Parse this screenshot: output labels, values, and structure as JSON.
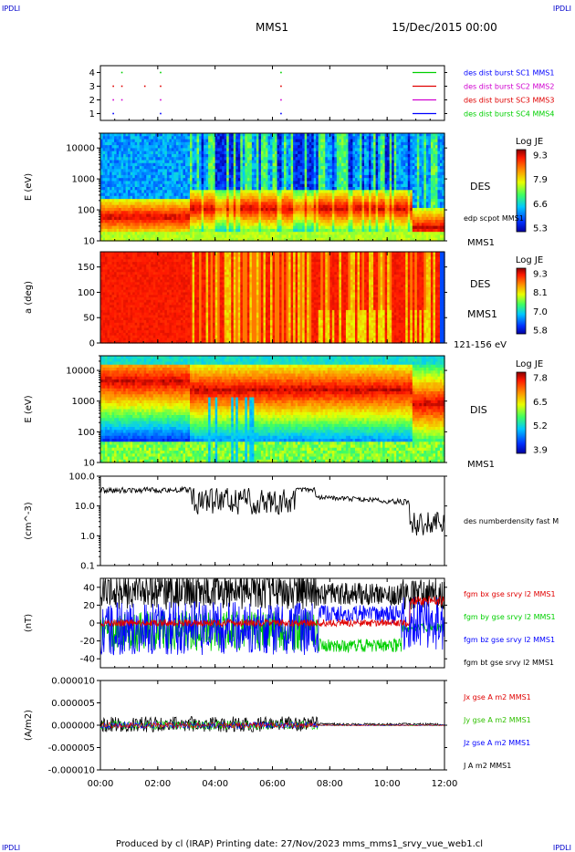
{
  "corner_labels": {
    "top_left": "IPDLI",
    "top_right": "IPDLI",
    "bottom_left": "IPDLI",
    "bottom_right": "IPDLI"
  },
  "header": {
    "mission": "MMS1",
    "datetime": "15/Dec/2015 00:00"
  },
  "footer": {
    "text": "Produced by cl (IRAP)   Printing date: 27/Nov/2023   mms_mms1_srvy_vue_web1.cl"
  },
  "colors": {
    "red": "#e00000",
    "green": "#00d000",
    "blue": "#0000ff",
    "black": "#000000",
    "magenta": "#d000d0"
  },
  "x_axis": {
    "ticks": [
      "00:00",
      "02:00",
      "04:00",
      "06:00",
      "08:00",
      "10:00",
      "12:00"
    ],
    "range_hours": [
      0,
      12
    ]
  },
  "chart_data": [
    {
      "id": "burst",
      "type": "scatter",
      "y_ticks": [
        "1",
        "2",
        "3",
        "4"
      ],
      "ylim": [
        0.5,
        4.5
      ],
      "legend": [
        {
          "label": "des dist burst SC1 MMS1",
          "color": "#0000ff",
          "y": 1
        },
        {
          "label": "des dist burst SC2 MMS2",
          "color": "#d000d0",
          "y": 2
        },
        {
          "label": "des dist burst SC3 MMS3",
          "color": "#e00000",
          "y": 3
        },
        {
          "label": "des dist burst SC4 MMS4",
          "color": "#00d000",
          "y": 4
        }
      ],
      "points": [
        {
          "t": 0.75,
          "y": 4
        },
        {
          "t": 2.1,
          "y": 4
        },
        {
          "t": 6.3,
          "y": 4
        },
        {
          "t": 0.45,
          "y": 3
        },
        {
          "t": 0.75,
          "y": 3
        },
        {
          "t": 1.55,
          "y": 3
        },
        {
          "t": 2.1,
          "y": 3
        },
        {
          "t": 6.3,
          "y": 3
        },
        {
          "t": 0.45,
          "y": 2
        },
        {
          "t": 0.75,
          "y": 2
        },
        {
          "t": 2.1,
          "y": 2
        },
        {
          "t": 6.3,
          "y": 2
        },
        {
          "t": 0.45,
          "y": 1
        },
        {
          "t": 2.1,
          "y": 1
        },
        {
          "t": 6.3,
          "y": 1
        }
      ]
    },
    {
      "id": "des-energy",
      "type": "heatmap",
      "ylabel": "E (eV)",
      "y_ticks": [
        "10",
        "100",
        "1000",
        "10000"
      ],
      "y_log": true,
      "ylim": [
        10,
        30000
      ],
      "side_labels": [
        "DES",
        "edp scpot MMS1",
        "MMS1"
      ],
      "colorbar": {
        "title": "Log JE",
        "ticks": [
          "9.3",
          "7.9",
          "6.6",
          "5.3"
        ],
        "range": [
          5.3,
          9.3
        ]
      }
    },
    {
      "id": "des-pitch",
      "type": "heatmap",
      "ylabel": "a (deg)",
      "y_ticks": [
        "0",
        "50",
        "100",
        "150"
      ],
      "ylim": [
        0,
        180
      ],
      "side_labels": [
        "DES",
        "MMS1",
        "121-156 eV"
      ],
      "colorbar": {
        "title": "Log JE",
        "ticks": [
          "9.3",
          "8.1",
          "7.0",
          "5.8"
        ],
        "range": [
          5.8,
          9.3
        ]
      }
    },
    {
      "id": "dis-energy",
      "type": "heatmap",
      "ylabel": "E (eV)",
      "y_ticks": [
        "10",
        "100",
        "1000",
        "10000"
      ],
      "y_log": true,
      "ylim": [
        10,
        30000
      ],
      "side_labels": [
        "DIS",
        "MMS1"
      ],
      "colorbar": {
        "title": "Log JE",
        "ticks": [
          "7.8",
          "6.5",
          "5.2",
          "3.9"
        ],
        "range": [
          3.9,
          7.8
        ]
      }
    },
    {
      "id": "density",
      "type": "line",
      "ylabel": "(cm^-3)",
      "y_ticks": [
        "0.1",
        "1.0",
        "10.0",
        "100.0"
      ],
      "y_log": true,
      "ylim": [
        0.1,
        100
      ],
      "series": [
        {
          "name": "des numberdensity fast M",
          "color": "#000000"
        }
      ]
    },
    {
      "id": "bfield",
      "type": "line",
      "ylabel": "(nT)",
      "y_ticks": [
        "-40",
        "-20",
        "0",
        "20",
        "40"
      ],
      "ylim": [
        -50,
        50
      ],
      "series": [
        {
          "name": "fgm bx gse srvy l2 MMS1",
          "color": "#e00000"
        },
        {
          "name": "fgm by gse srvy l2 MMS1",
          "color": "#00d000"
        },
        {
          "name": "fgm bz gse srvy l2 MMS1",
          "color": "#0000ff"
        },
        {
          "name": "fgm bt gse srvy l2 MMS1",
          "color": "#000000"
        }
      ]
    },
    {
      "id": "current",
      "type": "line",
      "ylabel": "(A/m2)",
      "y_ticks": [
        "-0.000010",
        "-0.000005",
        "0.000000",
        "0.000005",
        "0.000010"
      ],
      "ylim": [
        -1e-05,
        1e-05
      ],
      "series": [
        {
          "name": "Jx gse A m2 MMS1",
          "color": "#e00000"
        },
        {
          "name": "Jy gse A m2 MMS1",
          "color": "#00d000"
        },
        {
          "name": "Jz gse A m2 MMS1",
          "color": "#0000ff"
        },
        {
          "name": "J A m2 MMS1",
          "color": "#000000"
        }
      ]
    }
  ]
}
